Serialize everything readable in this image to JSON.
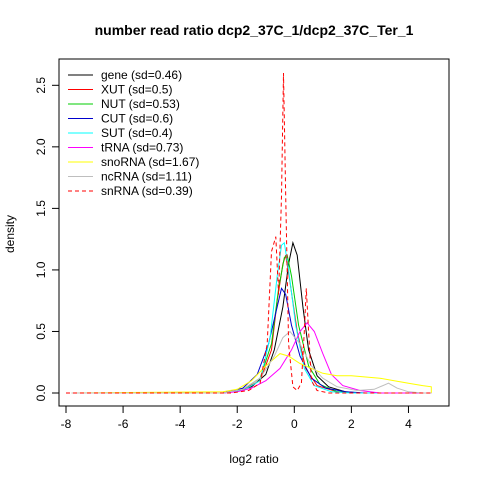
{
  "chart_data": {
    "type": "line",
    "title": "number read ratio dcp2_37C_1/dcp2_37C_Ter_1",
    "xlabel": "log2 ratio",
    "ylabel": "density",
    "xlim": [
      -8,
      5
    ],
    "ylim": [
      0,
      2.6
    ],
    "x_ticks": [
      -8,
      -6,
      -4,
      -2,
      0,
      2,
      4
    ],
    "y_ticks": [
      0.0,
      0.5,
      1.0,
      1.5,
      2.0,
      2.5
    ],
    "x_tick_labels": [
      "-8",
      "-6",
      "-4",
      "-2",
      "0",
      "2",
      "4"
    ],
    "y_tick_labels": [
      "0.0",
      "0.5",
      "1.0",
      "1.5",
      "2.0",
      "2.5"
    ],
    "legend_position": "top-left",
    "grid": false,
    "series": [
      {
        "name": "gene (sd=0.46)",
        "color": "#000000",
        "dashed": false,
        "points": [
          [
            -2.5,
            0
          ],
          [
            -2,
            0.02
          ],
          [
            -1.5,
            0.05
          ],
          [
            -1,
            0.15
          ],
          [
            -0.7,
            0.35
          ],
          [
            -0.4,
            0.7
          ],
          [
            -0.2,
            1.05
          ],
          [
            -0.05,
            1.22
          ],
          [
            0.1,
            1.12
          ],
          [
            0.3,
            0.7
          ],
          [
            0.5,
            0.35
          ],
          [
            0.8,
            0.14
          ],
          [
            1.2,
            0.05
          ],
          [
            1.8,
            0.01
          ],
          [
            2.3,
            0
          ]
        ]
      },
      {
        "name": "XUT (sd=0.5)",
        "color": "#ff0000",
        "dashed": false,
        "points": [
          [
            -2.5,
            0
          ],
          [
            -1.8,
            0.03
          ],
          [
            -1.2,
            0.1
          ],
          [
            -0.8,
            0.35
          ],
          [
            -0.6,
            0.75
          ],
          [
            -0.4,
            1.05
          ],
          [
            -0.3,
            1.12
          ],
          [
            -0.15,
            0.9
          ],
          [
            0.1,
            0.5
          ],
          [
            0.4,
            0.2
          ],
          [
            0.8,
            0.06
          ],
          [
            1.5,
            0.01
          ],
          [
            2.2,
            0
          ]
        ]
      },
      {
        "name": "NUT (sd=0.53)",
        "color": "#00cd00",
        "dashed": false,
        "points": [
          [
            -2.5,
            0
          ],
          [
            -1.8,
            0.03
          ],
          [
            -1.2,
            0.12
          ],
          [
            -0.8,
            0.4
          ],
          [
            -0.55,
            0.85
          ],
          [
            -0.35,
            1.1
          ],
          [
            -0.25,
            1.12
          ],
          [
            -0.1,
            0.95
          ],
          [
            0.15,
            0.55
          ],
          [
            0.5,
            0.22
          ],
          [
            0.9,
            0.07
          ],
          [
            1.5,
            0.01
          ],
          [
            2.3,
            0
          ]
        ]
      },
      {
        "name": "CUT (sd=0.6)",
        "color": "#0000cd",
        "dashed": false,
        "points": [
          [
            -2.5,
            0
          ],
          [
            -1.8,
            0.04
          ],
          [
            -1.3,
            0.15
          ],
          [
            -0.9,
            0.4
          ],
          [
            -0.6,
            0.7
          ],
          [
            -0.45,
            0.85
          ],
          [
            -0.3,
            0.8
          ],
          [
            -0.1,
            0.55
          ],
          [
            0.2,
            0.3
          ],
          [
            0.6,
            0.12
          ],
          [
            1.1,
            0.04
          ],
          [
            1.8,
            0.01
          ],
          [
            2.5,
            0
          ]
        ]
      },
      {
        "name": "SUT (sd=0.4)",
        "color": "#00ffff",
        "dashed": false,
        "points": [
          [
            -2.5,
            0
          ],
          [
            -1.8,
            0.02
          ],
          [
            -1.2,
            0.1
          ],
          [
            -0.85,
            0.45
          ],
          [
            -0.6,
            0.95
          ],
          [
            -0.45,
            1.2
          ],
          [
            -0.35,
            1.22
          ],
          [
            -0.2,
            1.0
          ],
          [
            0.05,
            0.55
          ],
          [
            0.35,
            0.2
          ],
          [
            0.7,
            0.06
          ],
          [
            1.3,
            0.01
          ],
          [
            2.0,
            0
          ]
        ]
      },
      {
        "name": "tRNA (sd=0.73)",
        "color": "#ff00ff",
        "dashed": false,
        "points": [
          [
            -2.5,
            0
          ],
          [
            -2,
            0.01
          ],
          [
            -1.5,
            0.04
          ],
          [
            -1,
            0.1
          ],
          [
            -0.5,
            0.2
          ],
          [
            -0.1,
            0.35
          ],
          [
            0.2,
            0.5
          ],
          [
            0.45,
            0.57
          ],
          [
            0.7,
            0.5
          ],
          [
            1.0,
            0.32
          ],
          [
            1.3,
            0.15
          ],
          [
            1.7,
            0.06
          ],
          [
            2.3,
            0.02
          ],
          [
            3,
            0
          ]
        ]
      },
      {
        "name": "snoRNA (sd=1.67)",
        "color": "#ffff00",
        "dashed": false,
        "points": [
          [
            -2.5,
            0.01
          ],
          [
            -2,
            0.03
          ],
          [
            -1.5,
            0.1
          ],
          [
            -1,
            0.22
          ],
          [
            -0.5,
            0.32
          ],
          [
            -0.2,
            0.3
          ],
          [
            0.2,
            0.24
          ],
          [
            0.6,
            0.2
          ],
          [
            1.0,
            0.16
          ],
          [
            1.5,
            0.14
          ],
          [
            2.0,
            0.14
          ],
          [
            2.5,
            0.13
          ],
          [
            3.0,
            0.12
          ],
          [
            3.5,
            0.1
          ],
          [
            4.0,
            0.08
          ],
          [
            4.5,
            0.06
          ],
          [
            4.8,
            0.05
          ]
        ]
      },
      {
        "name": "ncRNA (sd=1.11)",
        "color": "#bebebe",
        "dashed": false,
        "points": [
          [
            -2.5,
            0
          ],
          [
            -1.8,
            0.03
          ],
          [
            -1.2,
            0.12
          ],
          [
            -0.7,
            0.3
          ],
          [
            -0.4,
            0.45
          ],
          [
            -0.15,
            0.5
          ],
          [
            0.2,
            0.4
          ],
          [
            0.6,
            0.22
          ],
          [
            1.0,
            0.12
          ],
          [
            1.5,
            0.05
          ],
          [
            2.2,
            0.02
          ],
          [
            2.8,
            0.03
          ],
          [
            3.3,
            0.08
          ],
          [
            3.6,
            0.04
          ],
          [
            4.0,
            0.01
          ],
          [
            4.5,
            0
          ]
        ]
      },
      {
        "name": "snRNA (sd=0.39)",
        "color": "#ff0000",
        "dashed": true,
        "points": [
          [
            -8,
            0
          ],
          [
            -4,
            0
          ],
          [
            -2.2,
            0
          ],
          [
            -1.6,
            0.02
          ],
          [
            -1.2,
            0.08
          ],
          [
            -0.95,
            0.4
          ],
          [
            -0.8,
            1.15
          ],
          [
            -0.65,
            1.27
          ],
          [
            -0.55,
            0.8
          ],
          [
            -0.45,
            1.6
          ],
          [
            -0.38,
            2.6
          ],
          [
            -0.3,
            1.6
          ],
          [
            -0.2,
            0.4
          ],
          [
            -0.05,
            0.05
          ],
          [
            0.1,
            0.02
          ],
          [
            0.25,
            0.08
          ],
          [
            0.35,
            0.5
          ],
          [
            0.42,
            0.85
          ],
          [
            0.5,
            0.5
          ],
          [
            0.6,
            0.1
          ],
          [
            0.8,
            0.02
          ],
          [
            1.2,
            0
          ],
          [
            3,
            0
          ],
          [
            4.8,
            0
          ]
        ]
      }
    ]
  }
}
